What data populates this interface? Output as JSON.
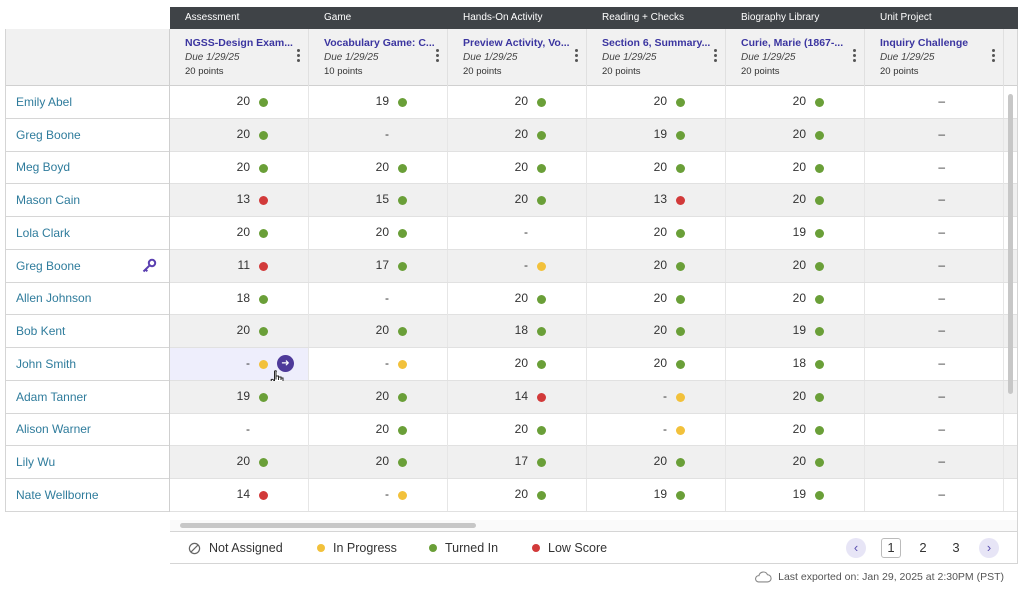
{
  "categories": [
    "Assessment",
    "Game",
    "Hands-On Activity",
    "Reading + Checks",
    "Biography Library",
    "Unit Project"
  ],
  "assignments": [
    {
      "title": "NGSS-Design Exam...",
      "due": "Due 1/29/25",
      "points": "20 points"
    },
    {
      "title": "Vocabulary Game: C...",
      "due": "Due 1/29/25",
      "points": "10 points"
    },
    {
      "title": "Preview Activity, Vo...",
      "due": "Due 1/29/25",
      "points": "20 points"
    },
    {
      "title": "Section 6, Summary...",
      "due": "Due 1/29/25",
      "points": "20 points"
    },
    {
      "title": "Curie, Marie (1867-...",
      "due": "Due 1/29/25",
      "points": "20 points"
    },
    {
      "title": "Inquiry Challenge",
      "due": "Due 1/29/25",
      "points": "20 points"
    }
  ],
  "students": [
    {
      "name": "Emily Abel",
      "cells": [
        {
          "v": "20",
          "s": "green"
        },
        {
          "v": "19",
          "s": "green"
        },
        {
          "v": "20",
          "s": "green"
        },
        {
          "v": "20",
          "s": "green"
        },
        {
          "v": "20",
          "s": "green"
        },
        {
          "v": "–",
          "s": ""
        }
      ]
    },
    {
      "name": "Greg Boone",
      "cells": [
        {
          "v": "20",
          "s": "green"
        },
        {
          "v": "-",
          "s": ""
        },
        {
          "v": "20",
          "s": "green"
        },
        {
          "v": "19",
          "s": "green"
        },
        {
          "v": "20",
          "s": "green"
        },
        {
          "v": "–",
          "s": ""
        }
      ]
    },
    {
      "name": "Meg Boyd",
      "cells": [
        {
          "v": "20",
          "s": "green"
        },
        {
          "v": "20",
          "s": "green"
        },
        {
          "v": "20",
          "s": "green"
        },
        {
          "v": "20",
          "s": "green"
        },
        {
          "v": "20",
          "s": "green"
        },
        {
          "v": "–",
          "s": ""
        }
      ]
    },
    {
      "name": "Mason Cain",
      "cells": [
        {
          "v": "13",
          "s": "red"
        },
        {
          "v": "15",
          "s": "green"
        },
        {
          "v": "20",
          "s": "green"
        },
        {
          "v": "13",
          "s": "red"
        },
        {
          "v": "20",
          "s": "green"
        },
        {
          "v": "–",
          "s": ""
        }
      ]
    },
    {
      "name": "Lola Clark",
      "cells": [
        {
          "v": "20",
          "s": "green"
        },
        {
          "v": "20",
          "s": "green"
        },
        {
          "v": "-",
          "s": ""
        },
        {
          "v": "20",
          "s": "green"
        },
        {
          "v": "19",
          "s": "green"
        },
        {
          "v": "–",
          "s": ""
        }
      ]
    },
    {
      "name": "Greg Boone",
      "key": true,
      "cells": [
        {
          "v": "11",
          "s": "red"
        },
        {
          "v": "17",
          "s": "green"
        },
        {
          "v": "-",
          "s": "yellow"
        },
        {
          "v": "20",
          "s": "green"
        },
        {
          "v": "20",
          "s": "green"
        },
        {
          "v": "–",
          "s": ""
        }
      ]
    },
    {
      "name": "Allen Johnson",
      "cells": [
        {
          "v": "18",
          "s": "green"
        },
        {
          "v": "-",
          "s": ""
        },
        {
          "v": "20",
          "s": "green"
        },
        {
          "v": "20",
          "s": "green"
        },
        {
          "v": "20",
          "s": "green"
        },
        {
          "v": "–",
          "s": ""
        }
      ]
    },
    {
      "name": "Bob Kent",
      "cells": [
        {
          "v": "20",
          "s": "green"
        },
        {
          "v": "20",
          "s": "green"
        },
        {
          "v": "18",
          "s": "green"
        },
        {
          "v": "20",
          "s": "green"
        },
        {
          "v": "19",
          "s": "green"
        },
        {
          "v": "–",
          "s": ""
        }
      ]
    },
    {
      "name": "John Smith",
      "highlight": true,
      "cells": [
        {
          "v": "-",
          "s": "yellow"
        },
        {
          "v": "-",
          "s": "yellow"
        },
        {
          "v": "20",
          "s": "green"
        },
        {
          "v": "20",
          "s": "green"
        },
        {
          "v": "18",
          "s": "green"
        },
        {
          "v": "–",
          "s": ""
        }
      ]
    },
    {
      "name": "Adam Tanner",
      "cells": [
        {
          "v": "19",
          "s": "green"
        },
        {
          "v": "20",
          "s": "green"
        },
        {
          "v": "14",
          "s": "red"
        },
        {
          "v": "-",
          "s": "yellow"
        },
        {
          "v": "20",
          "s": "green"
        },
        {
          "v": "–",
          "s": ""
        }
      ]
    },
    {
      "name": "Alison Warner",
      "cells": [
        {
          "v": "-",
          "s": ""
        },
        {
          "v": "20",
          "s": "green"
        },
        {
          "v": "20",
          "s": "green"
        },
        {
          "v": "-",
          "s": "yellow"
        },
        {
          "v": "20",
          "s": "green"
        },
        {
          "v": "–",
          "s": ""
        }
      ]
    },
    {
      "name": "Lily Wu",
      "cells": [
        {
          "v": "20",
          "s": "green"
        },
        {
          "v": "20",
          "s": "green"
        },
        {
          "v": "17",
          "s": "green"
        },
        {
          "v": "20",
          "s": "green"
        },
        {
          "v": "20",
          "s": "green"
        },
        {
          "v": "–",
          "s": ""
        }
      ]
    },
    {
      "name": "Nate Wellborne",
      "cells": [
        {
          "v": "14",
          "s": "red"
        },
        {
          "v": "-",
          "s": "yellow"
        },
        {
          "v": "20",
          "s": "green"
        },
        {
          "v": "19",
          "s": "green"
        },
        {
          "v": "19",
          "s": "green"
        },
        {
          "v": "–",
          "s": ""
        }
      ]
    }
  ],
  "legend": {
    "not_assigned": "Not Assigned",
    "in_progress": "In Progress",
    "turned_in": "Turned In",
    "low_score": "Low Score"
  },
  "pagination": {
    "prev": "‹",
    "pages": [
      "1",
      "2",
      "3"
    ],
    "current": "1",
    "next": "›"
  },
  "footer": {
    "export_text": "Last exported on: Jan 29, 2025 at 2:30PM (PST)"
  },
  "colors": {
    "green": "#6a9f38",
    "red": "#d23a3a",
    "yellow": "#f2c13b",
    "accent": "#3b35a0"
  }
}
